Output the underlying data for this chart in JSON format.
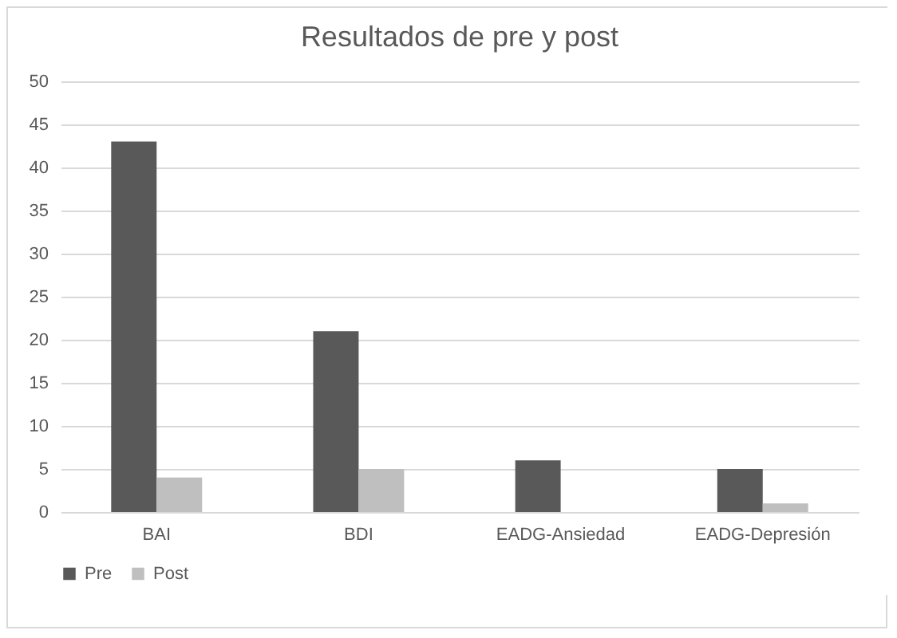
{
  "chart_data": {
    "type": "bar",
    "title": "Resultados de pre y post",
    "categories": [
      "BAI",
      "BDI",
      "EADG-Ansiedad",
      "EADG-Depresión"
    ],
    "series": [
      {
        "name": "Pre",
        "color": "#595959",
        "values": [
          43,
          21,
          6,
          5
        ]
      },
      {
        "name": "Post",
        "color": "#bfbfbf",
        "values": [
          4,
          5,
          0,
          1
        ]
      }
    ],
    "ylim": [
      0,
      50
    ],
    "yticks": [
      0,
      5,
      10,
      15,
      20,
      25,
      30,
      35,
      40,
      45,
      50
    ],
    "grid": "y",
    "legend": "bottom"
  }
}
